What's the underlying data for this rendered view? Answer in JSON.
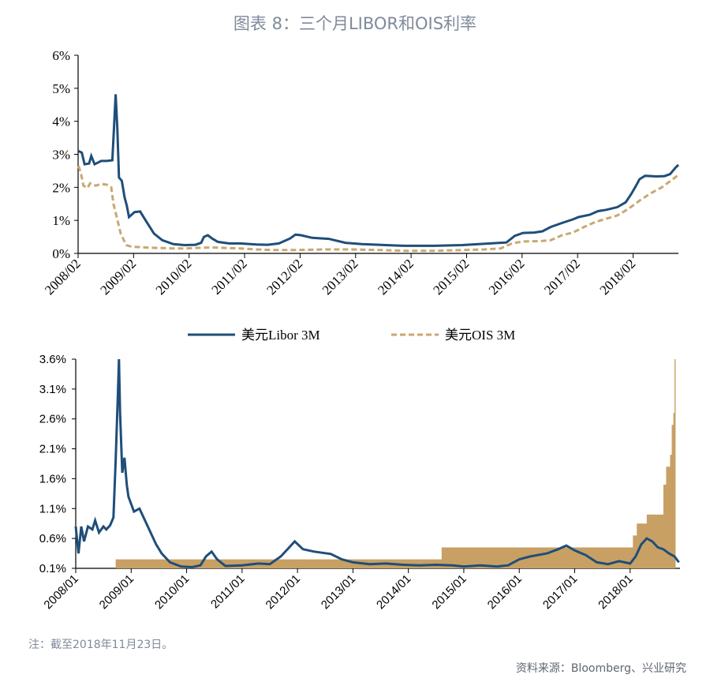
{
  "title": "图表 8：三个月LIBOR和OIS利率",
  "note": "注：截至2018年11月23日。",
  "source": "资料来源：Bloomberg、兴业研究",
  "colors": {
    "libor": "#1f4e79",
    "ois": "#c9a870",
    "spread_fill": "#c8a064"
  },
  "chart_data": [
    {
      "type": "line",
      "x_ticks": [
        "2008/02",
        "2009/02",
        "2010/02",
        "2011/02",
        "2012/02",
        "2013/02",
        "2014/02",
        "2015/02",
        "2016/02",
        "2017/02",
        "2018/02"
      ],
      "y_ticks": [
        "0%",
        "1%",
        "2%",
        "3%",
        "4%",
        "5%",
        "6%"
      ],
      "ylim": [
        0,
        6
      ],
      "xlim": [
        2008.083,
        2018.9
      ],
      "grid": false,
      "legend_position": "bottom",
      "series": [
        {
          "name": "美元Libor 3M",
          "style": "solid",
          "points": [
            [
              2008.09,
              3.1
            ],
            [
              2008.15,
              3.05
            ],
            [
              2008.2,
              2.7
            ],
            [
              2008.28,
              2.72
            ],
            [
              2008.32,
              2.95
            ],
            [
              2008.38,
              2.7
            ],
            [
              2008.5,
              2.8
            ],
            [
              2008.6,
              2.8
            ],
            [
              2008.7,
              2.82
            ],
            [
              2008.73,
              3.8
            ],
            [
              2008.76,
              4.82
            ],
            [
              2008.79,
              3.8
            ],
            [
              2008.82,
              2.3
            ],
            [
              2008.87,
              2.2
            ],
            [
              2008.92,
              1.7
            ],
            [
              2008.96,
              1.45
            ],
            [
              2009.0,
              1.1
            ],
            [
              2009.1,
              1.25
            ],
            [
              2009.2,
              1.27
            ],
            [
              2009.3,
              1.0
            ],
            [
              2009.45,
              0.6
            ],
            [
              2009.6,
              0.4
            ],
            [
              2009.8,
              0.28
            ],
            [
              2010.0,
              0.25
            ],
            [
              2010.2,
              0.26
            ],
            [
              2010.3,
              0.32
            ],
            [
              2010.35,
              0.5
            ],
            [
              2010.42,
              0.55
            ],
            [
              2010.5,
              0.45
            ],
            [
              2010.6,
              0.35
            ],
            [
              2010.8,
              0.3
            ],
            [
              2011.0,
              0.3
            ],
            [
              2011.3,
              0.27
            ],
            [
              2011.5,
              0.26
            ],
            [
              2011.7,
              0.3
            ],
            [
              2011.9,
              0.45
            ],
            [
              2012.0,
              0.57
            ],
            [
              2012.1,
              0.55
            ],
            [
              2012.3,
              0.47
            ],
            [
              2012.6,
              0.44
            ],
            [
              2012.9,
              0.32
            ],
            [
              2013.2,
              0.28
            ],
            [
              2013.5,
              0.26
            ],
            [
              2013.8,
              0.24
            ],
            [
              2014.0,
              0.23
            ],
            [
              2014.5,
              0.23
            ],
            [
              2015.0,
              0.25
            ],
            [
              2015.3,
              0.28
            ],
            [
              2015.6,
              0.31
            ],
            [
              2015.8,
              0.33
            ],
            [
              2015.95,
              0.53
            ],
            [
              2016.1,
              0.62
            ],
            [
              2016.3,
              0.63
            ],
            [
              2016.45,
              0.67
            ],
            [
              2016.6,
              0.8
            ],
            [
              2016.8,
              0.92
            ],
            [
              2017.0,
              1.03
            ],
            [
              2017.1,
              1.1
            ],
            [
              2017.3,
              1.17
            ],
            [
              2017.45,
              1.28
            ],
            [
              2017.6,
              1.32
            ],
            [
              2017.8,
              1.4
            ],
            [
              2017.95,
              1.55
            ],
            [
              2018.05,
              1.8
            ],
            [
              2018.12,
              2.0
            ],
            [
              2018.2,
              2.25
            ],
            [
              2018.3,
              2.35
            ],
            [
              2018.5,
              2.33
            ],
            [
              2018.65,
              2.34
            ],
            [
              2018.75,
              2.4
            ],
            [
              2018.85,
              2.6
            ],
            [
              2018.9,
              2.68
            ]
          ]
        },
        {
          "name": "美元OIS 3M",
          "style": "dashed",
          "points": [
            [
              2008.09,
              2.65
            ],
            [
              2008.13,
              2.45
            ],
            [
              2008.18,
              2.05
            ],
            [
              2008.25,
              1.98
            ],
            [
              2008.3,
              2.12
            ],
            [
              2008.4,
              2.05
            ],
            [
              2008.5,
              2.1
            ],
            [
              2008.6,
              2.08
            ],
            [
              2008.68,
              2.0
            ],
            [
              2008.72,
              1.5
            ],
            [
              2008.78,
              1.1
            ],
            [
              2008.85,
              0.6
            ],
            [
              2008.95,
              0.25
            ],
            [
              2009.05,
              0.2
            ],
            [
              2009.2,
              0.19
            ],
            [
              2009.4,
              0.17
            ],
            [
              2009.6,
              0.16
            ],
            [
              2009.8,
              0.15
            ],
            [
              2010.0,
              0.15
            ],
            [
              2010.3,
              0.17
            ],
            [
              2010.5,
              0.18
            ],
            [
              2010.8,
              0.16
            ],
            [
              2011.0,
              0.15
            ],
            [
              2011.3,
              0.12
            ],
            [
              2011.6,
              0.1
            ],
            [
              2012.0,
              0.1
            ],
            [
              2012.5,
              0.12
            ],
            [
              2013.0,
              0.12
            ],
            [
              2013.5,
              0.1
            ],
            [
              2014.0,
              0.08
            ],
            [
              2014.5,
              0.08
            ],
            [
              2015.0,
              0.1
            ],
            [
              2015.4,
              0.12
            ],
            [
              2015.7,
              0.15
            ],
            [
              2015.9,
              0.3
            ],
            [
              2016.1,
              0.36
            ],
            [
              2016.4,
              0.37
            ],
            [
              2016.6,
              0.4
            ],
            [
              2016.8,
              0.55
            ],
            [
              2017.0,
              0.63
            ],
            [
              2017.2,
              0.8
            ],
            [
              2017.4,
              0.95
            ],
            [
              2017.6,
              1.05
            ],
            [
              2017.8,
              1.15
            ],
            [
              2018.0,
              1.35
            ],
            [
              2018.2,
              1.6
            ],
            [
              2018.4,
              1.82
            ],
            [
              2018.6,
              2.0
            ],
            [
              2018.8,
              2.25
            ],
            [
              2018.9,
              2.38
            ]
          ]
        }
      ]
    },
    {
      "type": "area",
      "x_ticks": [
        "2008/01",
        "2009/01",
        "2010/01",
        "2011/01",
        "2012/01",
        "2013/01",
        "2014/01",
        "2015/01",
        "2016/01",
        "2017/01",
        "2018/01"
      ],
      "y_ticks": [
        "0.1%",
        "0.6%",
        "1.1%",
        "1.6%",
        "2.1%",
        "2.6%",
        "3.1%",
        "3.6%"
      ],
      "ylim": [
        0.1,
        3.6
      ],
      "xlim": [
        2008.0,
        2018.9
      ],
      "grid": false,
      "series": [
        {
          "type": "area",
          "style": "filled-step",
          "points": [
            [
              2008.72,
              0.25
            ],
            [
              2014.6,
              0.25
            ],
            [
              2014.6,
              0.45
            ],
            [
              2018.05,
              0.45
            ],
            [
              2018.05,
              0.65
            ],
            [
              2018.12,
              0.65
            ],
            [
              2018.12,
              0.85
            ],
            [
              2018.3,
              0.85
            ],
            [
              2018.3,
              1.0
            ],
            [
              2018.6,
              1.0
            ],
            [
              2018.6,
              1.5
            ],
            [
              2018.65,
              1.5
            ],
            [
              2018.65,
              1.8
            ],
            [
              2018.72,
              1.8
            ],
            [
              2018.72,
              2.0
            ],
            [
              2018.75,
              2.0
            ],
            [
              2018.75,
              2.5
            ],
            [
              2018.78,
              2.5
            ],
            [
              2018.78,
              2.7
            ],
            [
              2018.8,
              2.7
            ],
            [
              2018.8,
              3.6
            ],
            [
              2018.82,
              3.6
            ]
          ]
        },
        {
          "type": "line",
          "style": "solid",
          "points": [
            [
              2008.0,
              0.8
            ],
            [
              2008.05,
              0.35
            ],
            [
              2008.1,
              0.8
            ],
            [
              2008.15,
              0.55
            ],
            [
              2008.22,
              0.8
            ],
            [
              2008.3,
              0.75
            ],
            [
              2008.35,
              0.9
            ],
            [
              2008.42,
              0.7
            ],
            [
              2008.5,
              0.8
            ],
            [
              2008.55,
              0.75
            ],
            [
              2008.62,
              0.82
            ],
            [
              2008.68,
              0.95
            ],
            [
              2008.72,
              1.9
            ],
            [
              2008.76,
              3.0
            ],
            [
              2008.78,
              3.65
            ],
            [
              2008.8,
              2.7
            ],
            [
              2008.84,
              1.7
            ],
            [
              2008.88,
              1.95
            ],
            [
              2008.92,
              1.5
            ],
            [
              2008.95,
              1.3
            ],
            [
              2009.05,
              1.05
            ],
            [
              2009.15,
              1.1
            ],
            [
              2009.25,
              0.9
            ],
            [
              2009.35,
              0.7
            ],
            [
              2009.45,
              0.5
            ],
            [
              2009.55,
              0.35
            ],
            [
              2009.7,
              0.2
            ],
            [
              2009.9,
              0.13
            ],
            [
              2010.1,
              0.12
            ],
            [
              2010.25,
              0.15
            ],
            [
              2010.35,
              0.3
            ],
            [
              2010.45,
              0.38
            ],
            [
              2010.55,
              0.25
            ],
            [
              2010.7,
              0.14
            ],
            [
              2011.0,
              0.15
            ],
            [
              2011.3,
              0.18
            ],
            [
              2011.5,
              0.17
            ],
            [
              2011.7,
              0.3
            ],
            [
              2011.85,
              0.45
            ],
            [
              2011.95,
              0.55
            ],
            [
              2012.1,
              0.42
            ],
            [
              2012.3,
              0.38
            ],
            [
              2012.6,
              0.34
            ],
            [
              2012.8,
              0.25
            ],
            [
              2013.0,
              0.2
            ],
            [
              2013.3,
              0.17
            ],
            [
              2013.6,
              0.18
            ],
            [
              2013.9,
              0.16
            ],
            [
              2014.2,
              0.15
            ],
            [
              2014.5,
              0.16
            ],
            [
              2014.8,
              0.15
            ],
            [
              2015.0,
              0.13
            ],
            [
              2015.3,
              0.15
            ],
            [
              2015.6,
              0.13
            ],
            [
              2015.8,
              0.15
            ],
            [
              2016.0,
              0.25
            ],
            [
              2016.2,
              0.3
            ],
            [
              2016.5,
              0.35
            ],
            [
              2016.7,
              0.42
            ],
            [
              2016.85,
              0.48
            ],
            [
              2017.0,
              0.4
            ],
            [
              2017.2,
              0.32
            ],
            [
              2017.4,
              0.2
            ],
            [
              2017.6,
              0.17
            ],
            [
              2017.8,
              0.22
            ],
            [
              2018.0,
              0.18
            ],
            [
              2018.1,
              0.3
            ],
            [
              2018.2,
              0.5
            ],
            [
              2018.3,
              0.6
            ],
            [
              2018.4,
              0.55
            ],
            [
              2018.5,
              0.45
            ],
            [
              2018.6,
              0.42
            ],
            [
              2018.7,
              0.35
            ],
            [
              2018.8,
              0.3
            ],
            [
              2018.88,
              0.2
            ]
          ]
        }
      ]
    }
  ]
}
